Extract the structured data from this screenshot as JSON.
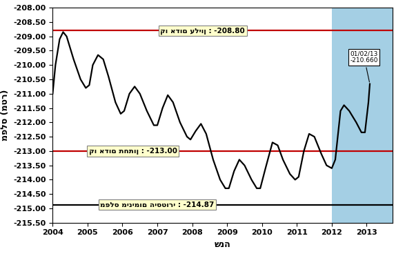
{
  "chart_data": {
    "type": "line",
    "xlabel": "שנה",
    "ylabel": "מפלס (מטר)",
    "x": [
      2004.0,
      2004.08,
      2004.2,
      2004.3,
      2004.4,
      2004.6,
      2004.8,
      2004.95,
      2005.05,
      2005.15,
      2005.3,
      2005.45,
      2005.6,
      2005.8,
      2005.95,
      2006.05,
      2006.2,
      2006.35,
      2006.5,
      2006.7,
      2006.9,
      2007.0,
      2007.15,
      2007.3,
      2007.45,
      2007.65,
      2007.85,
      2007.95,
      2008.1,
      2008.25,
      2008.4,
      2008.6,
      2008.8,
      2008.95,
      2009.05,
      2009.2,
      2009.35,
      2009.5,
      2009.7,
      2009.85,
      2009.95,
      2010.1,
      2010.3,
      2010.45,
      2010.6,
      2010.8,
      2010.95,
      2011.05,
      2011.2,
      2011.35,
      2011.5,
      2011.7,
      2011.85,
      2012.0,
      2012.1,
      2012.25,
      2012.35,
      2012.5,
      2012.7,
      2012.85,
      2012.95,
      2013.05,
      2013.09
    ],
    "values": [
      -211.0,
      -210.0,
      -209.1,
      -208.85,
      -209.0,
      -209.8,
      -210.5,
      -210.8,
      -210.7,
      -210.0,
      -209.65,
      -209.8,
      -210.4,
      -211.3,
      -211.7,
      -211.6,
      -211.0,
      -210.75,
      -211.0,
      -211.6,
      -212.1,
      -212.1,
      -211.5,
      -211.05,
      -211.3,
      -212.0,
      -212.5,
      -212.6,
      -212.3,
      -212.05,
      -212.4,
      -213.3,
      -214.0,
      -214.3,
      -214.3,
      -213.7,
      -213.3,
      -213.5,
      -214.0,
      -214.3,
      -214.3,
      -213.6,
      -212.7,
      -212.8,
      -213.3,
      -213.8,
      -214.0,
      -213.9,
      -213.0,
      -212.4,
      -212.5,
      -213.1,
      -213.5,
      -213.6,
      -213.3,
      -211.6,
      -211.4,
      -211.6,
      -212.0,
      -212.35,
      -212.35,
      -211.3,
      -210.66
    ],
    "color": "#000000",
    "xlim": [
      2004,
      2013.75
    ],
    "xticks": [
      2004,
      2005,
      2006,
      2007,
      2008,
      2009,
      2010,
      2011,
      2012,
      2013
    ],
    "ylim": [
      -215.5,
      -208.0
    ],
    "yticks": [
      {
        "value": -208.0,
        "label": "-208.00"
      },
      {
        "value": -208.5,
        "label": "-208.50"
      },
      {
        "value": -209.0,
        "label": "-209.00"
      },
      {
        "value": -209.5,
        "label": "-209.50"
      },
      {
        "value": -210.0,
        "label": "-210.00"
      },
      {
        "value": -210.5,
        "label": "-210.50"
      },
      {
        "value": -211.0,
        "label": "-211.00"
      },
      {
        "value": -211.5,
        "label": "-211.50"
      },
      {
        "value": -212.0,
        "label": "-212.00"
      },
      {
        "value": -212.5,
        "label": "-212.50"
      },
      {
        "value": -213.0,
        "label": "-213.00"
      },
      {
        "value": -213.5,
        "label": "-213.50"
      },
      {
        "value": -214.0,
        "label": "-214.00"
      },
      {
        "value": -214.5,
        "label": "-214.50"
      },
      {
        "value": -215.0,
        "label": "-215.00"
      },
      {
        "value": -215.5,
        "label": "-215.50"
      }
    ],
    "grid": false,
    "shaded_span": [
      2012,
      2013.75
    ],
    "reference_lines": [
      {
        "value": -208.8,
        "label": "קו אדום עליון : -208.80",
        "color": "#c00000",
        "label_x": 2008.3
      },
      {
        "value": -213.0,
        "label": "קו אדום תחתון : -213.00",
        "color": "#c00000",
        "label_x": 2006.3
      },
      {
        "value": -214.87,
        "label": "מפלס מינימום היסטורי : -214.87",
        "color": "#000000",
        "label_x": 2007.0
      }
    ],
    "annotations": [
      {
        "x": 2013.09,
        "y": -210.66,
        "date_label": "01/02/13",
        "value_label": "-210.660"
      }
    ]
  }
}
